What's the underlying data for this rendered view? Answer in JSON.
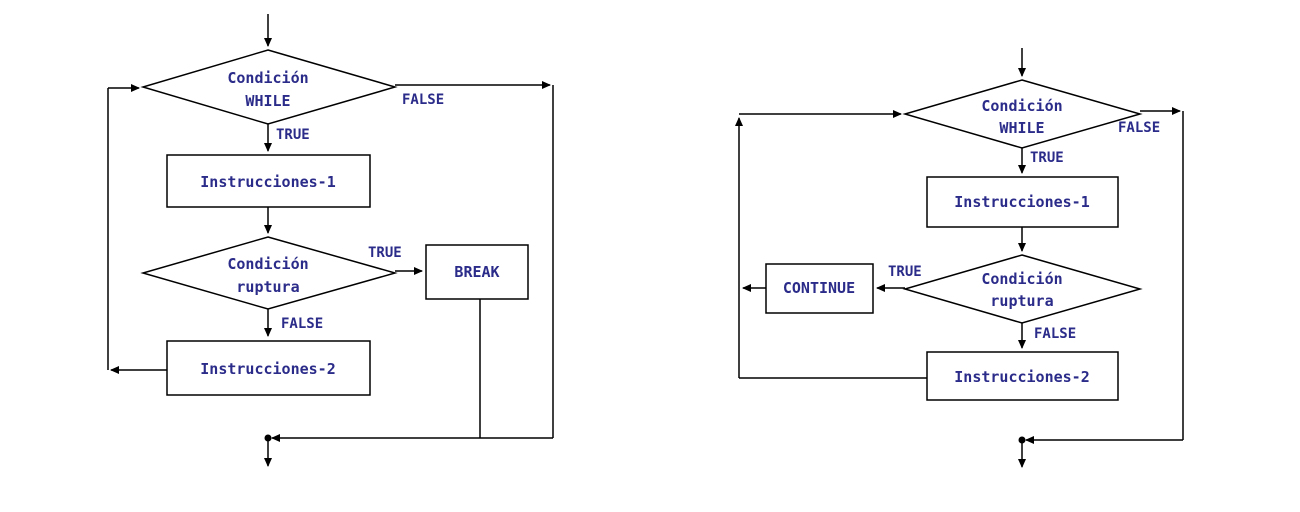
{
  "left": {
    "while_cond": [
      "Condición",
      "WHILE"
    ],
    "true_1": "TRUE",
    "false_1": "FALSE",
    "instr1": "Instrucciones-1",
    "break_cond": [
      "Condición",
      "ruptura"
    ],
    "true_2": "TRUE",
    "break": "BREAK",
    "false_2": "FALSE",
    "instr2": "Instrucciones-2"
  },
  "right": {
    "while_cond": [
      "Condición",
      "WHILE"
    ],
    "true_1": "TRUE",
    "false_1": "FALSE",
    "instr1": "Instrucciones-1",
    "break_cond": [
      "Condición",
      "ruptura"
    ],
    "true_2": "TRUE",
    "continue": "CONTINUE",
    "false_2": "FALSE",
    "instr2": "Instrucciones-2"
  }
}
